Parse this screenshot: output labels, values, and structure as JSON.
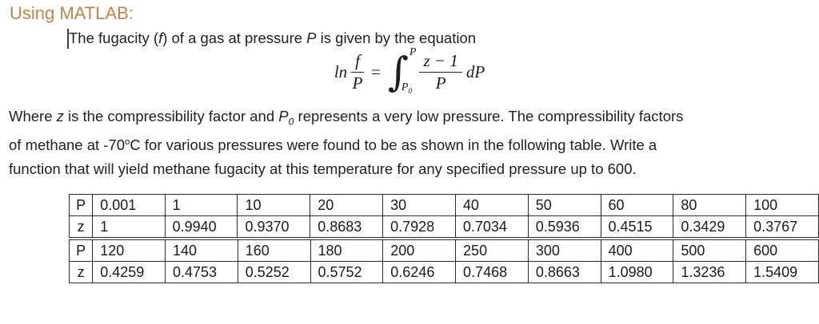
{
  "document": {
    "heading": "Using MATLAB:",
    "intro": {
      "seg1": "The fugacity (",
      "f_var": "f",
      "seg2": ") of a gas at pressure ",
      "p_var": "P",
      "seg3": " is given by the equation"
    },
    "equation": {
      "ln": "ln",
      "num1": "f",
      "den1": "P",
      "equals": "=",
      "integral": "∫",
      "upper_limit": "P",
      "lower_limit_base": "P",
      "lower_limit_sub": "0",
      "num2": "z − 1",
      "den2": "P",
      "differential": "dP"
    },
    "paragraph": {
      "line1": {
        "seg1": "Where ",
        "z_var": "z",
        "seg2": " is the compressibility factor and ",
        "p_var": "P",
        "p_sub": "0",
        "seg3": " represents a very low pressure. The compressibility factors"
      },
      "line2": {
        "seg1": "of methane at -70",
        "deg": "o",
        "seg2": "C for various pressures were found to be as shown in the following table. Write a"
      },
      "line3": "function that will yield methane fugacity at this temperature for any specified pressure up to 600."
    },
    "table": {
      "blocks": [
        {
          "rows": [
            {
              "label": "P",
              "values": [
                "0.001",
                "1",
                "10",
                "20",
                "30",
                "40",
                "50",
                "60",
                "80",
                "100"
              ]
            },
            {
              "label": "z",
              "values": [
                "1",
                "0.9940",
                "0.9370",
                "0.8683",
                "0.7928",
                "0.7034",
                "0.5936",
                "0.4515",
                "0.3429",
                "0.3767"
              ]
            }
          ]
        },
        {
          "rows": [
            {
              "label": "P",
              "values": [
                "120",
                "140",
                "160",
                "180",
                "200",
                "250",
                "300",
                "400",
                "500",
                "600"
              ]
            },
            {
              "label": "z",
              "values": [
                "0.4259",
                "0.4753",
                "0.5252",
                "0.5752",
                "0.6246",
                "0.7468",
                "0.8663",
                "1.0980",
                "1.3236",
                "1.5409"
              ]
            }
          ]
        }
      ]
    },
    "colors": {
      "heading": "#C5824E",
      "body_text": "#212121",
      "table_border": "#2B2B2B"
    }
  }
}
